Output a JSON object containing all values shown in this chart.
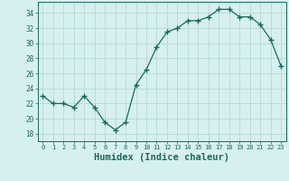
{
  "x": [
    0,
    1,
    2,
    3,
    4,
    5,
    6,
    7,
    8,
    9,
    10,
    11,
    12,
    13,
    14,
    15,
    16,
    17,
    18,
    19,
    20,
    21,
    22,
    23
  ],
  "y": [
    23,
    22,
    22,
    21.5,
    23,
    21.5,
    19.5,
    18.5,
    19.5,
    24.5,
    26.5,
    29.5,
    31.5,
    32,
    33,
    33,
    33.5,
    34.5,
    34.5,
    33.5,
    33.5,
    32.5,
    30.5,
    27
  ],
  "line_color": "#1a6b5a",
  "marker": "+",
  "marker_size": 4,
  "bg_color": "#d6f0ef",
  "grid_color": "#b8d8d5",
  "tick_color": "#1a6b5a",
  "xlabel": "Humidex (Indice chaleur)",
  "xlabel_fontsize": 7.5,
  "ylim": [
    17,
    35.5
  ],
  "xlim": [
    -0.5,
    23.5
  ],
  "yticks": [
    18,
    20,
    22,
    24,
    26,
    28,
    30,
    32,
    34
  ],
  "xticks": [
    0,
    1,
    2,
    3,
    4,
    5,
    6,
    7,
    8,
    9,
    10,
    11,
    12,
    13,
    14,
    15,
    16,
    17,
    18,
    19,
    20,
    21,
    22,
    23
  ]
}
